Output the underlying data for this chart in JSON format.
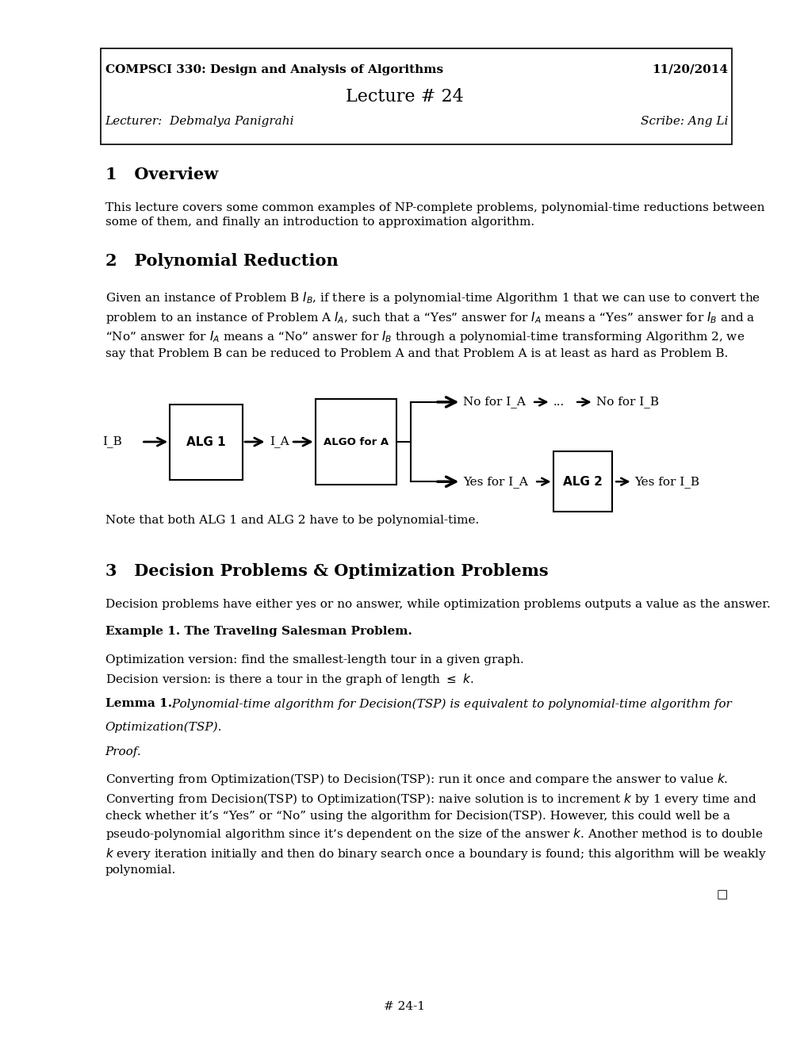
{
  "bg_color": "#ffffff",
  "course": "COMPSCI 330: Design and Analysis of Algorithms",
  "date": "11/20/2014",
  "lecture_title": "Lecture # 24",
  "lecturer": "Lecturer:  Debmalya Panigrahi",
  "scribe": "Scribe: Ang Li",
  "sec1_title": "1   Overview",
  "sec1_body": "This lecture covers some common examples of NP-complete problems, polynomial-time reductions between\nsome of them, and finally an introduction to approximation algorithm.",
  "sec2_title": "2   Polynomial Reduction",
  "sec2_note": "Note that both ALG 1 and ALG 2 have to be polynomial-time.",
  "sec3_title": "3   Decision Problems & Optimization Problems",
  "sec3_body": "Decision problems have either yes or no answer, while optimization problems outputs a value as the answer.",
  "ex1_title": "Example 1. The Traveling Salesman Problem.",
  "opt_version": "Optimization version: find the smallest-length tour in a given graph.",
  "dec_version": "Decision version: is there a tour in the graph of length ≤ k.",
  "page_num": "# 24-1",
  "ml": 0.13,
  "mr": 0.9,
  "ts": 11.0
}
